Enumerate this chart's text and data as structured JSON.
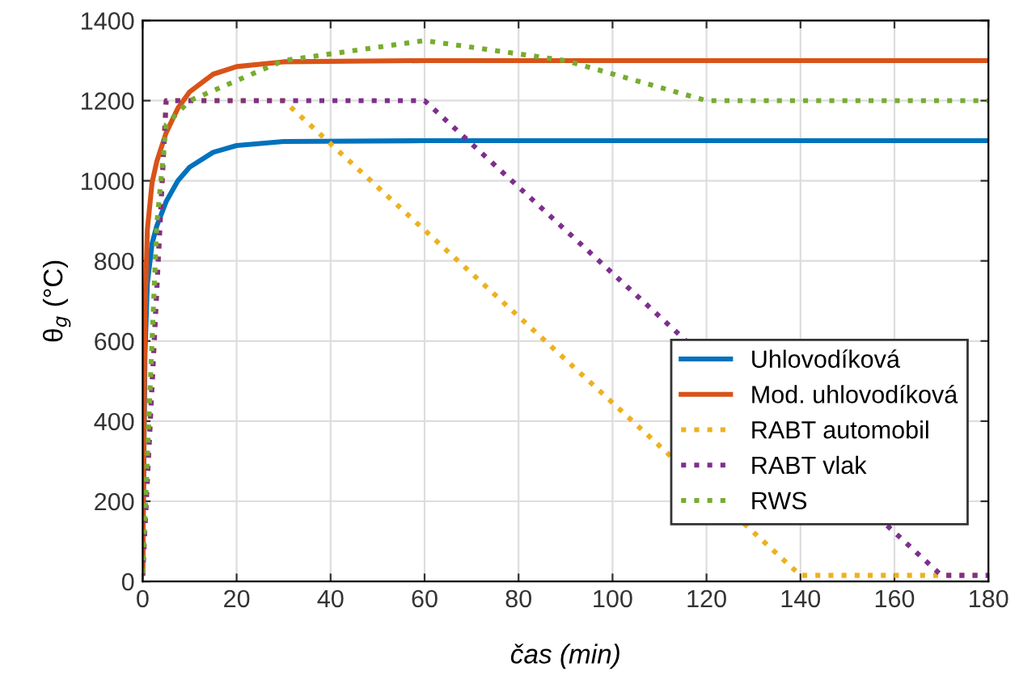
{
  "chart_data": {
    "type": "line",
    "xlabel": "čas (min)",
    "ylabel": "θ$_{g}$ (°C)",
    "xlim": [
      0,
      180
    ],
    "ylim": [
      0,
      1400
    ],
    "xticks": [
      0,
      20,
      40,
      60,
      80,
      100,
      120,
      140,
      160,
      180
    ],
    "yticks": [
      0,
      200,
      400,
      600,
      800,
      1000,
      1200,
      1400
    ],
    "grid": true,
    "legend": "bottom right",
    "series": [
      {
        "name": "Uhlovodíková",
        "color": "#0072bd",
        "line_style": "solid",
        "x": [
          0,
          0.5,
          1,
          2,
          3,
          5,
          7.5,
          10,
          15,
          20,
          30,
          60,
          180
        ],
        "values": [
          20,
          569,
          743,
          843,
          887,
          948,
          1000,
          1034,
          1071,
          1088,
          1098,
          1100,
          1100
        ]
      },
      {
        "name": "Mod. uhlovodíková",
        "color": "#d95319",
        "line_style": "solid",
        "x": [
          0,
          0.5,
          1,
          2,
          3,
          5,
          7.5,
          10,
          15,
          20,
          30,
          60,
          180
        ],
        "values": [
          20,
          670,
          878,
          995,
          1048,
          1120,
          1181,
          1222,
          1266,
          1285,
          1297,
          1300,
          1300
        ]
      },
      {
        "name": "RABT automobil",
        "color": "#edb120",
        "line_style": "dotted",
        "x": [
          0,
          5,
          30,
          140,
          180
        ],
        "values": [
          15,
          1200,
          1200,
          15,
          15
        ]
      },
      {
        "name": "RABT vlak",
        "color": "#7e2f8e",
        "line_style": "dotted",
        "x": [
          0,
          5,
          60,
          170,
          180
        ],
        "values": [
          15,
          1200,
          1200,
          15,
          15
        ]
      },
      {
        "name": "RWS",
        "color": "#77ac30",
        "line_style": "dotted",
        "x": [
          0,
          3,
          5,
          10,
          30,
          60,
          90,
          120,
          180
        ],
        "values": [
          20,
          890,
          1140,
          1200,
          1300,
          1350,
          1300,
          1200,
          1200
        ]
      }
    ]
  }
}
